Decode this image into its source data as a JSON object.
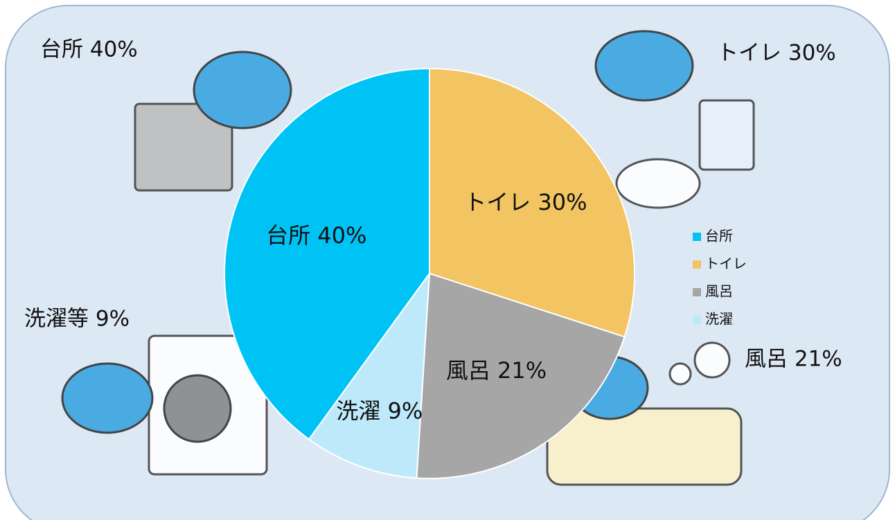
{
  "chart_data": {
    "type": "pie",
    "categories": [
      "台所",
      "トイレ",
      "風呂",
      "洗濯"
    ],
    "values": [
      40,
      30,
      21,
      9
    ],
    "value_labels": [
      "台所 40%",
      "トイレ 30%",
      "風呂 21%",
      "洗濯 9%"
    ],
    "colors": [
      "#00c3f5",
      "#f2c462",
      "#a6a6a6",
      "#bde9fb"
    ],
    "annotations": [
      "台所 40%",
      "トイレ 30%",
      "洗濯等 9%",
      "風呂 21%"
    ],
    "legend": "right"
  }
}
